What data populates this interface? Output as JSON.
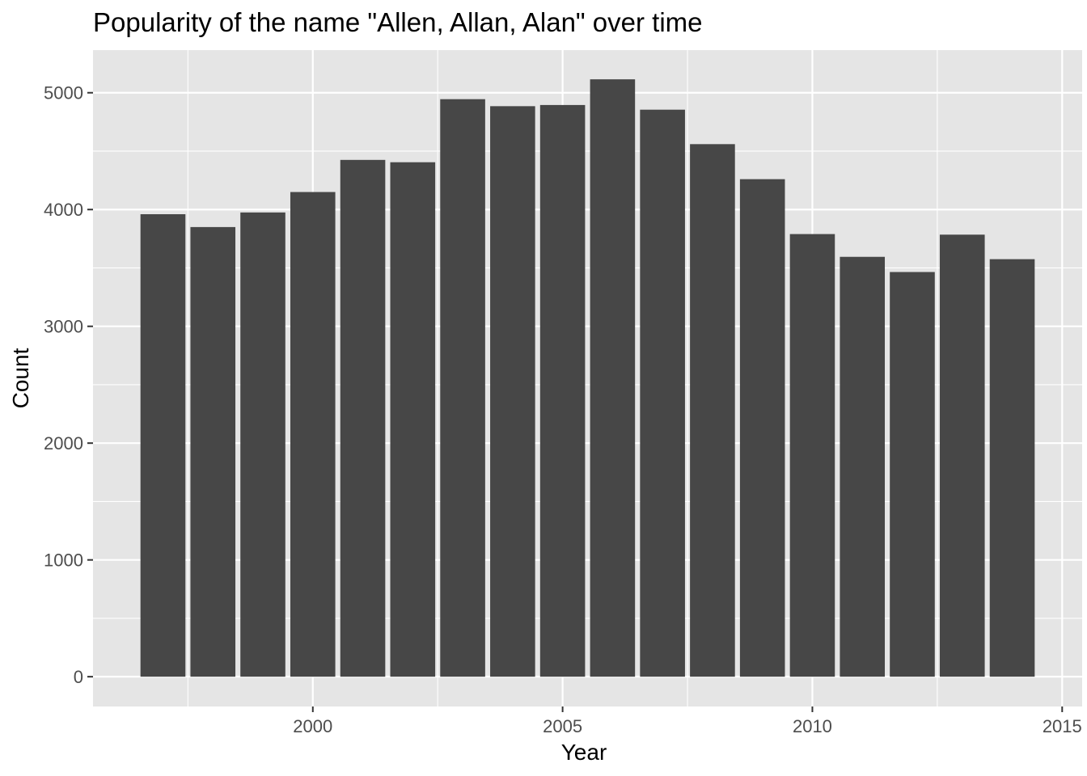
{
  "chart_data": {
    "type": "bar",
    "title": "Popularity of the name \"Allen, Allan, Alan\" over time",
    "xlabel": "Year",
    "ylabel": "Count",
    "x": [
      1997,
      1998,
      1999,
      2000,
      2001,
      2002,
      2003,
      2004,
      2005,
      2006,
      2007,
      2008,
      2009,
      2010,
      2011,
      2012,
      2013,
      2014
    ],
    "values": [
      3960,
      3850,
      3975,
      4150,
      4425,
      4405,
      4945,
      4885,
      4895,
      5115,
      4855,
      4560,
      4260,
      3790,
      3595,
      3465,
      3785,
      3575
    ],
    "xlim": [
      1995.6,
      2015.4
    ],
    "ylim": [
      -255,
      5365
    ],
    "x_ticks": [
      "2000",
      "2005",
      "2010",
      "2015"
    ],
    "y_ticks": [
      "0",
      "1000",
      "2000",
      "3000",
      "4000",
      "5000"
    ],
    "grid": true,
    "colors": {
      "panel": "#e5e5e5",
      "bar": "#474747",
      "grid": "#ffffff",
      "tick_text": "#4d4d4d",
      "text": "#000000"
    }
  }
}
